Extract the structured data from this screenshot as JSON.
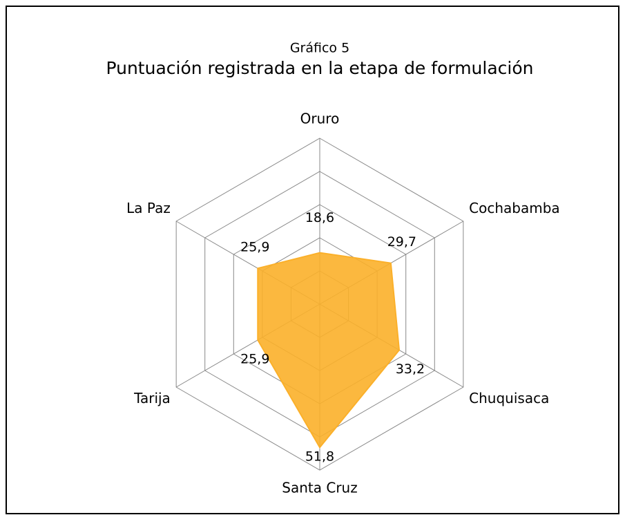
{
  "chart_data": {
    "type": "radar",
    "subtitle": "Gráfico 5",
    "title": "Puntuación registrada en la etapa de formulación",
    "categories": [
      "Oruro",
      "Cochabamba",
      "Chuquisaca",
      "Santa Cruz",
      "Tarija",
      "La Paz"
    ],
    "values": [
      18.6,
      29.7,
      33.2,
      51.8,
      25.9,
      25.9
    ],
    "value_labels": [
      "18,6",
      "29,7",
      "33,2",
      "51,8",
      "25,9",
      "25,9"
    ],
    "color": "#fbb02a",
    "ylim": [
      0,
      60
    ],
    "yticks": [
      0,
      12,
      24,
      36,
      48,
      60
    ],
    "grid": true
  }
}
